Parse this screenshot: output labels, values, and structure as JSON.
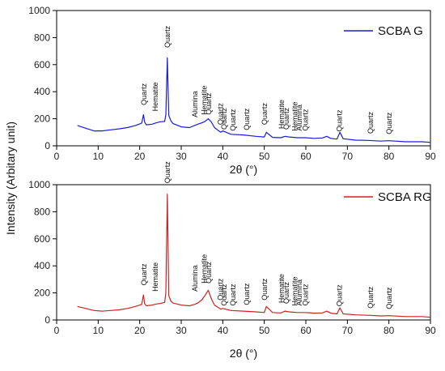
{
  "ylabel": "Intensity (Arbitary unit)",
  "chart_data": [
    {
      "type": "line",
      "xlabel": "2θ (°)",
      "xlim": [
        0,
        90
      ],
      "ylim": [
        0,
        1000
      ],
      "x_ticks": [
        0,
        10,
        20,
        30,
        40,
        50,
        60,
        70,
        80,
        90
      ],
      "y_ticks": [
        0,
        200,
        400,
        600,
        800,
        1000
      ],
      "legend_position": "top-right",
      "series": [
        {
          "name": "SCBA G",
          "color": "#1a1adc",
          "x": [
            5,
            7,
            9,
            11,
            13,
            15,
            17,
            19,
            20,
            20.5,
            20.9,
            21.2,
            21.6,
            23,
            24,
            25,
            26,
            26.3,
            26.65,
            27,
            27.5,
            28,
            30,
            32,
            33.2,
            34,
            35,
            35.7,
            36.5,
            37.2,
            38,
            39.5,
            40,
            42,
            45,
            48,
            50,
            50.5,
            52,
            54,
            55,
            56,
            58,
            60,
            62,
            64,
            65,
            66,
            67.5,
            68.2,
            69,
            72,
            75,
            78,
            80,
            84,
            88,
            90
          ],
          "values": [
            150,
            130,
            110,
            110,
            118,
            125,
            135,
            150,
            162,
            168,
            230,
            175,
            155,
            160,
            170,
            178,
            180,
            230,
            650,
            225,
            185,
            165,
            140,
            135,
            150,
            160,
            170,
            180,
            200,
            178,
            135,
            100,
            110,
            85,
            80,
            70,
            65,
            100,
            62,
            60,
            70,
            65,
            60,
            60,
            55,
            58,
            70,
            55,
            50,
            100,
            52,
            42,
            40,
            35,
            38,
            30,
            30,
            25
          ]
        }
      ],
      "annotations": [
        {
          "label": "Quartz",
          "x": 21,
          "y": 300
        },
        {
          "label": "Hematite",
          "x": 23.8,
          "y": 255
        },
        {
          "label": "Quartz",
          "x": 26.65,
          "y": 725
        },
        {
          "label": "Alumina",
          "x": 33.3,
          "y": 210
        },
        {
          "label": "Hematite",
          "x": 35.6,
          "y": 230
        },
        {
          "label": "Quartz",
          "x": 36.6,
          "y": 230
        },
        {
          "label": "Quartz",
          "x": 39.4,
          "y": 155
        },
        {
          "label": "Quartz",
          "x": 40.3,
          "y": 120
        },
        {
          "label": "Quartz",
          "x": 42.5,
          "y": 110
        },
        {
          "label": "Quartz",
          "x": 45.8,
          "y": 115
        },
        {
          "label": "Quartz",
          "x": 50.1,
          "y": 155
        },
        {
          "label": "Hematite",
          "x": 54.2,
          "y": 125
        },
        {
          "label": "Quartz",
          "x": 55.3,
          "y": 120
        },
        {
          "label": "Hematite",
          "x": 57.4,
          "y": 110
        },
        {
          "label": "Alumina",
          "x": 58.4,
          "y": 110
        },
        {
          "label": "Quartz",
          "x": 59.9,
          "y": 110
        },
        {
          "label": "Quartz",
          "x": 68.1,
          "y": 105
        },
        {
          "label": "Quartz",
          "x": 75.6,
          "y": 90
        },
        {
          "label": "Quartz",
          "x": 80.1,
          "y": 85
        }
      ]
    },
    {
      "type": "line",
      "xlabel": "2θ (°)",
      "xlim": [
        0,
        90
      ],
      "ylim": [
        0,
        1000
      ],
      "x_ticks": [
        0,
        10,
        20,
        30,
        40,
        50,
        60,
        70,
        80,
        90
      ],
      "y_ticks": [
        0,
        200,
        400,
        600,
        800,
        1000
      ],
      "legend_position": "top-right",
      "series": [
        {
          "name": "SCBA RG",
          "color": "#cc2222",
          "x": [
            5,
            7,
            9,
            11,
            13,
            15,
            17,
            19,
            20,
            20.5,
            20.9,
            21.2,
            21.6,
            23,
            24,
            25,
            26,
            26.3,
            26.65,
            27,
            27.5,
            28,
            30,
            32,
            33.2,
            34,
            35,
            35.7,
            36.5,
            37.2,
            38,
            39.5,
            40,
            42,
            45,
            48,
            50,
            50.5,
            52,
            54,
            55,
            56,
            58,
            60,
            62,
            64,
            65,
            66,
            67.5,
            68.2,
            69,
            72,
            75,
            78,
            80,
            84,
            88,
            90
          ],
          "values": [
            100,
            85,
            70,
            65,
            70,
            75,
            85,
            100,
            110,
            115,
            185,
            120,
            105,
            110,
            118,
            122,
            130,
            200,
            930,
            180,
            140,
            125,
            110,
            105,
            115,
            125,
            150,
            180,
            220,
            160,
            110,
            80,
            85,
            70,
            65,
            60,
            55,
            100,
            55,
            52,
            65,
            60,
            55,
            55,
            50,
            52,
            65,
            50,
            45,
            90,
            45,
            38,
            35,
            30,
            32,
            25,
            25,
            20
          ]
        }
      ],
      "annotations": [
        {
          "label": "Quartz",
          "x": 21,
          "y": 255
        },
        {
          "label": "Hematite",
          "x": 23.8,
          "y": 210
        },
        {
          "label": "Quartz",
          "x": 26.65,
          "y": 1010
        },
        {
          "label": "Alumina",
          "x": 33.3,
          "y": 210
        },
        {
          "label": "Hematite",
          "x": 35.6,
          "y": 270
        },
        {
          "label": "Quartz",
          "x": 36.6,
          "y": 270
        },
        {
          "label": "Quartz",
          "x": 39.4,
          "y": 145
        },
        {
          "label": "Quartz",
          "x": 40.3,
          "y": 105
        },
        {
          "label": "Quartz",
          "x": 42.5,
          "y": 105
        },
        {
          "label": "Quartz",
          "x": 45.8,
          "y": 110
        },
        {
          "label": "Quartz",
          "x": 50.1,
          "y": 145
        },
        {
          "label": "Hematite",
          "x": 54.2,
          "y": 125
        },
        {
          "label": "Quartz",
          "x": 55.3,
          "y": 120
        },
        {
          "label": "Hematite",
          "x": 57.4,
          "y": 105
        },
        {
          "label": "Alumina",
          "x": 58.4,
          "y": 105
        },
        {
          "label": "Quartz",
          "x": 59.9,
          "y": 105
        },
        {
          "label": "Quartz",
          "x": 68.1,
          "y": 100
        },
        {
          "label": "Quartz",
          "x": 75.6,
          "y": 85
        },
        {
          "label": "Quartz",
          "x": 80.1,
          "y": 80
        }
      ]
    }
  ]
}
